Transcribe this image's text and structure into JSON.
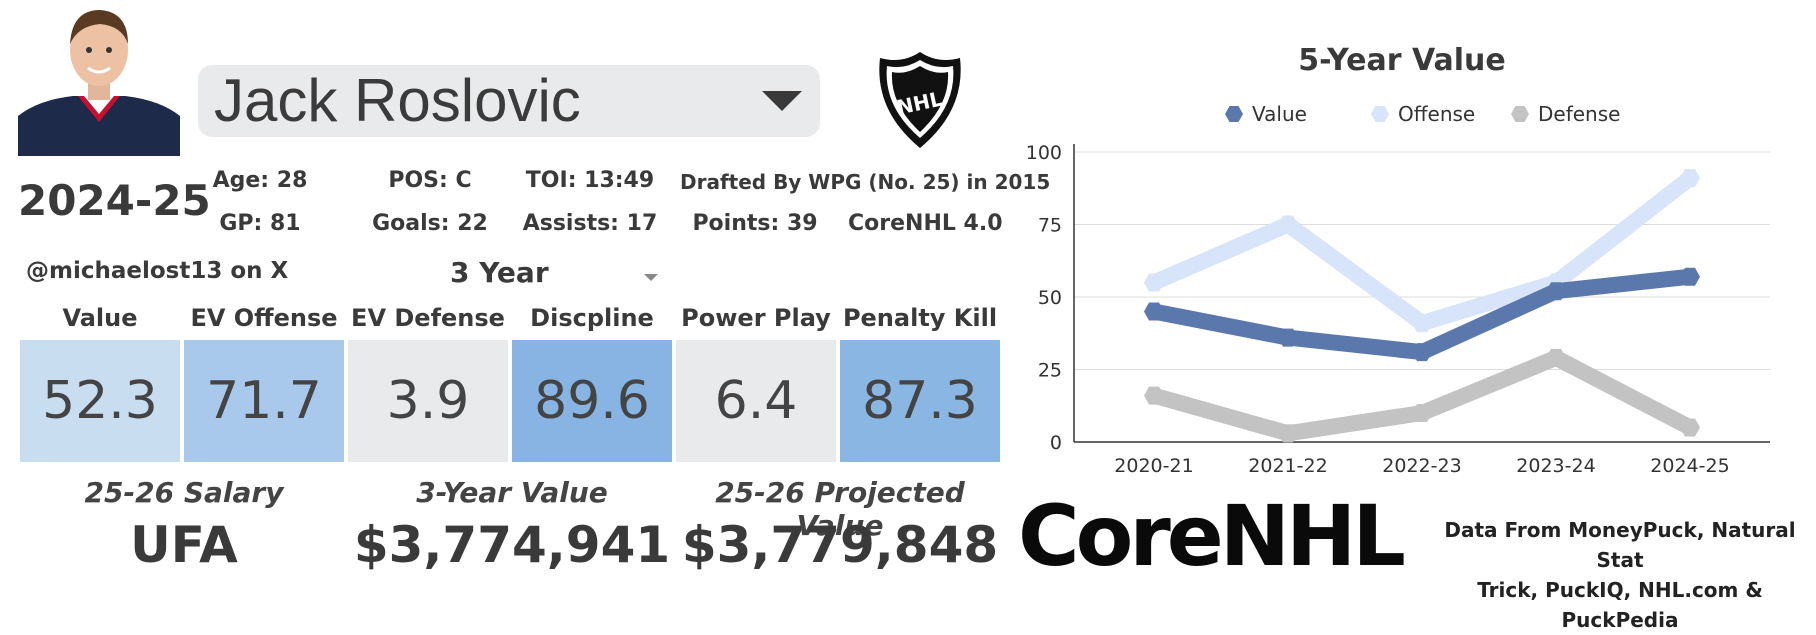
{
  "player": {
    "name": "Jack Roslovic",
    "season": "2024-25",
    "handle": "@michaelost13 on X"
  },
  "stats": {
    "age": "Age: 28",
    "pos": "POS: C",
    "toi": "TOI: 13:49",
    "drafted": "Drafted By WPG (No. 25) in 2015",
    "gp": "GP: 81",
    "goals": "Goals: 22",
    "assists": "Assists: 17",
    "points": "Points: 39",
    "version": "CoreNHL 4.0"
  },
  "period_select": "3 Year",
  "metrics": [
    {
      "label": "Value",
      "value": "52.3",
      "color": "#c9ddf1"
    },
    {
      "label": "EV Offense",
      "value": "71.7",
      "color": "#a9c9ec"
    },
    {
      "label": "EV Defense",
      "value": "3.9",
      "color": "#e9eaec"
    },
    {
      "label": "Discpline",
      "value": "89.6",
      "color": "#87b4e3"
    },
    {
      "label": "Power Play",
      "value": "6.4",
      "color": "#e9eaec"
    },
    {
      "label": "Penalty Kill",
      "value": "87.3",
      "color": "#8ab6e4"
    }
  ],
  "financial": {
    "salary_label": "25-26 Salary",
    "salary_value": "UFA",
    "value3_label": "3-Year Value",
    "value3_value": "$3,774,941",
    "proj_label": "25-26 Projected Value",
    "proj_value": "$3,779,848"
  },
  "branding": {
    "logo": "CoreNHL",
    "credit_line1": "Data From MoneyPuck, Natural Stat",
    "credit_line2": "Trick, PuckIQ, NHL.com & PuckPedia",
    "shield_text": "NHL"
  },
  "chart_data": {
    "type": "line",
    "title": "5-Year Value",
    "categories": [
      "2020-21",
      "2021-22",
      "2022-23",
      "2023-24",
      "2024-25"
    ],
    "ylim": [
      0,
      100
    ],
    "yticks": [
      0,
      25,
      50,
      75,
      100
    ],
    "grid": true,
    "legend": "top",
    "series": [
      {
        "name": "Value",
        "values": [
          45,
          36,
          31,
          52,
          57
        ],
        "color": "#5b78ad"
      },
      {
        "name": "Offense",
        "values": [
          55,
          75,
          41,
          55,
          91
        ],
        "color": "#d7e4fa"
      },
      {
        "name": "Defense",
        "values": [
          16,
          3,
          10,
          29,
          5
        ],
        "color": "#c3c3c3"
      }
    ]
  }
}
